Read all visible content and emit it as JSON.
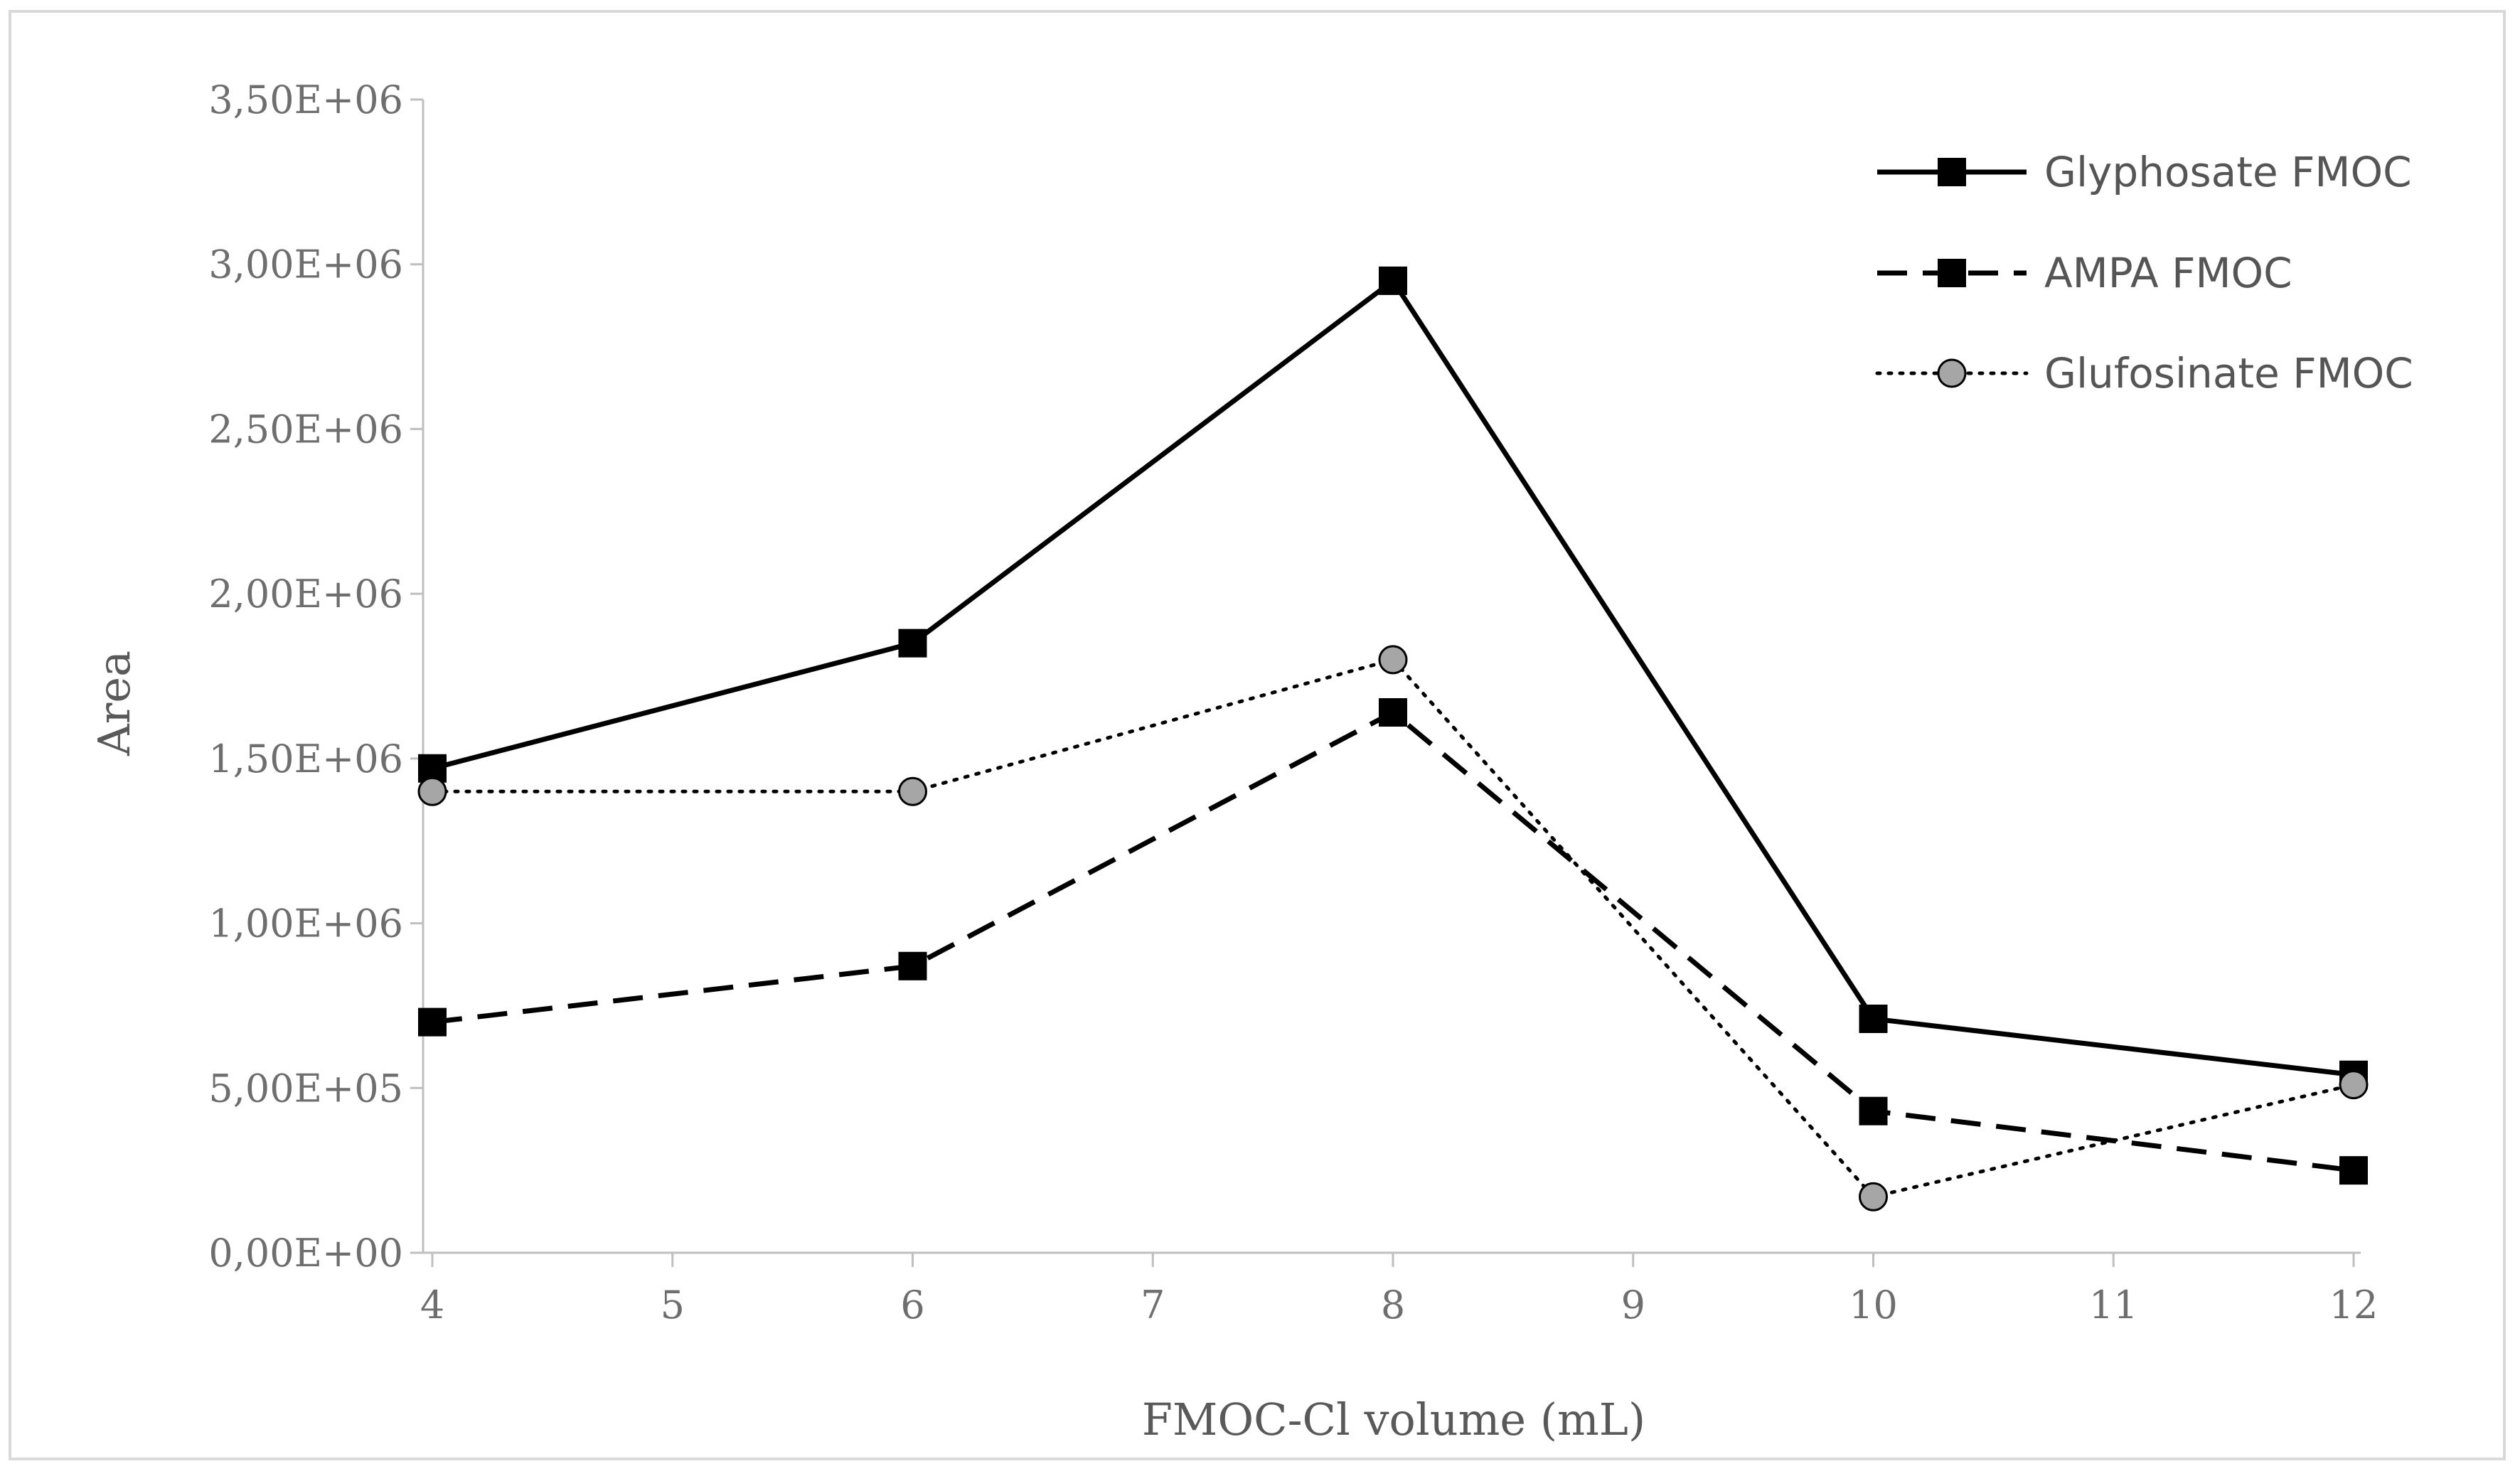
{
  "chart_data": {
    "type": "line",
    "title": "",
    "xlabel": "FMOC-Cl  volume (mL)",
    "ylabel": "Area",
    "xlim": [
      4,
      12
    ],
    "ylim": [
      0,
      3500000
    ],
    "x_ticks": [
      4,
      5,
      6,
      7,
      8,
      9,
      10,
      11,
      12
    ],
    "x_tick_labels": [
      "4",
      "5",
      "6",
      "7",
      "8",
      "9",
      "10",
      "11",
      "12"
    ],
    "y_ticks": [
      0,
      500000,
      1000000,
      1500000,
      2000000,
      2500000,
      3000000,
      3500000
    ],
    "y_tick_labels": [
      "0,00E+00",
      "5,00E+05",
      "1,00E+06",
      "1,50E+06",
      "2,00E+06",
      "2,50E+06",
      "3,00E+06",
      "3,50E+06"
    ],
    "grid": false,
    "legend_position": "top-right",
    "series": [
      {
        "name": "Glyphosate FMOC",
        "line_style": "solid",
        "marker": "square",
        "marker_color": "#000000",
        "x": [
          4,
          6,
          8,
          10,
          12
        ],
        "values": [
          1470000,
          1850000,
          2950000,
          710000,
          540000
        ]
      },
      {
        "name": "AMPA FMOC",
        "line_style": "dashed",
        "marker": "square",
        "marker_color": "#000000",
        "x": [
          4,
          6,
          8,
          10,
          12
        ],
        "values": [
          700000,
          870000,
          1640000,
          430000,
          250000
        ]
      },
      {
        "name": "Glufosinate FMOC",
        "line_style": "dotted",
        "marker": "circle",
        "marker_color": "#a6a6a6",
        "x": [
          4,
          6,
          8,
          10,
          12
        ],
        "values": [
          1400000,
          1400000,
          1800000,
          170000,
          510000
        ]
      }
    ]
  }
}
